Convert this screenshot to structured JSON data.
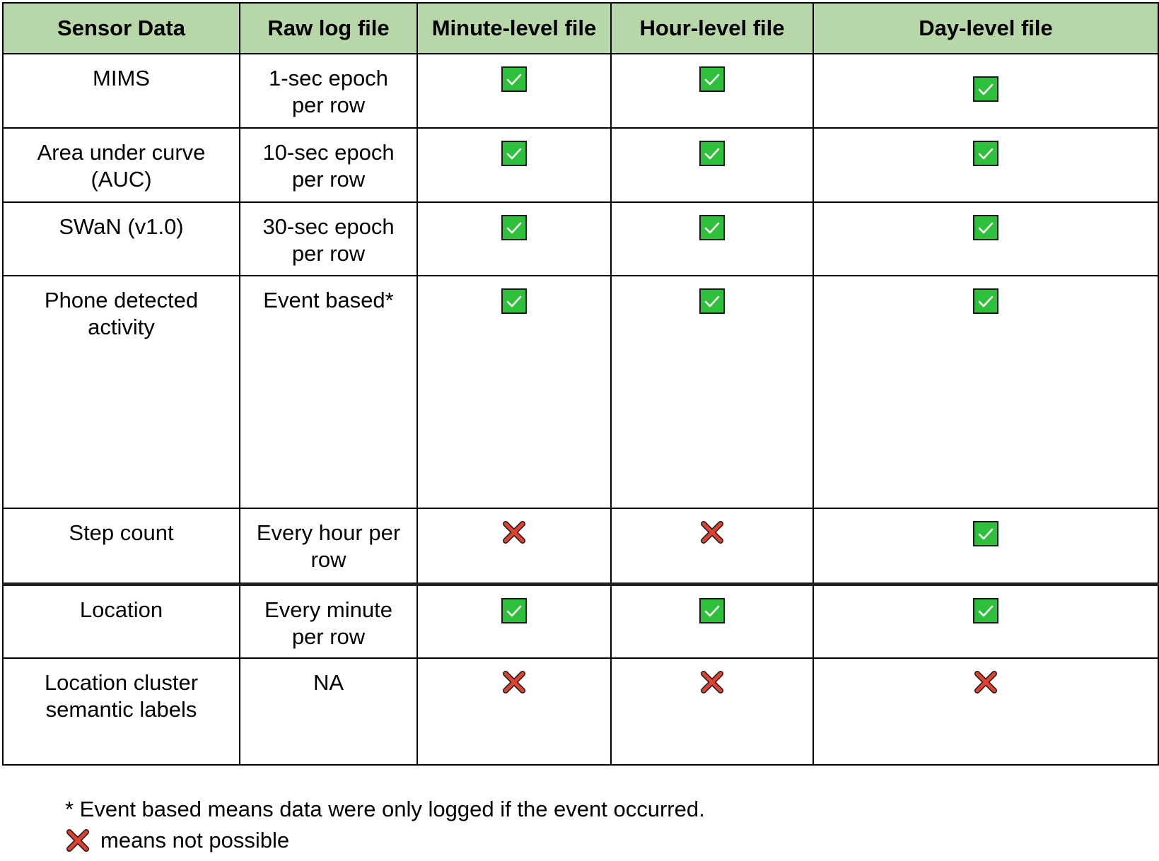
{
  "table": {
    "headers": [
      "Sensor Data",
      "Raw log file",
      "Minute-level file",
      "Hour-level file",
      "Day-level file"
    ],
    "rows": [
      {
        "sensor_line1": "MIMS",
        "sensor_line2": "",
        "raw_line1": "1-sec epoch",
        "raw_line2": "per row",
        "minute": "check",
        "hour": "check",
        "day": "check"
      },
      {
        "sensor_line1": "Area under curve",
        "sensor_line2": "(AUC)",
        "raw_line1": "10-sec epoch",
        "raw_line2": "per row",
        "minute": "check",
        "hour": "check",
        "day": "check"
      },
      {
        "sensor_line1": "SWaN (v1.0)",
        "sensor_line2": "",
        "raw_line1": "30-sec epoch",
        "raw_line2": "per row",
        "minute": "check",
        "hour": "check",
        "day": "check"
      },
      {
        "sensor_line1": "Phone detected",
        "sensor_line2": "activity",
        "raw_line1": "Event based*",
        "raw_line2": "",
        "minute": "check",
        "hour": "check",
        "day": "check"
      },
      {
        "sensor_line1": "Step count",
        "sensor_line2": "",
        "raw_line1": "Every hour per",
        "raw_line2": "row",
        "minute": "cross",
        "hour": "cross",
        "day": "check"
      },
      {
        "sensor_line1": "Location",
        "sensor_line2": "",
        "raw_line1": "Every minute",
        "raw_line2": "per row",
        "minute": "check",
        "hour": "check",
        "day": "check"
      },
      {
        "sensor_line1": "Location cluster",
        "sensor_line2": "semantic labels",
        "raw_line1": "NA",
        "raw_line2": "",
        "minute": "cross",
        "hour": "cross",
        "day": "cross"
      }
    ]
  },
  "footnotes": {
    "event_based": "* Event based means data were only logged if the event occurred.",
    "not_possible": "means not possible"
  },
  "colors": {
    "header_bg": "#b7d7a8",
    "check_green": "#2ec03a",
    "cross_red": "#e0412f"
  },
  "icons": {
    "check": "check-mark-icon",
    "cross": "cross-mark-icon"
  }
}
